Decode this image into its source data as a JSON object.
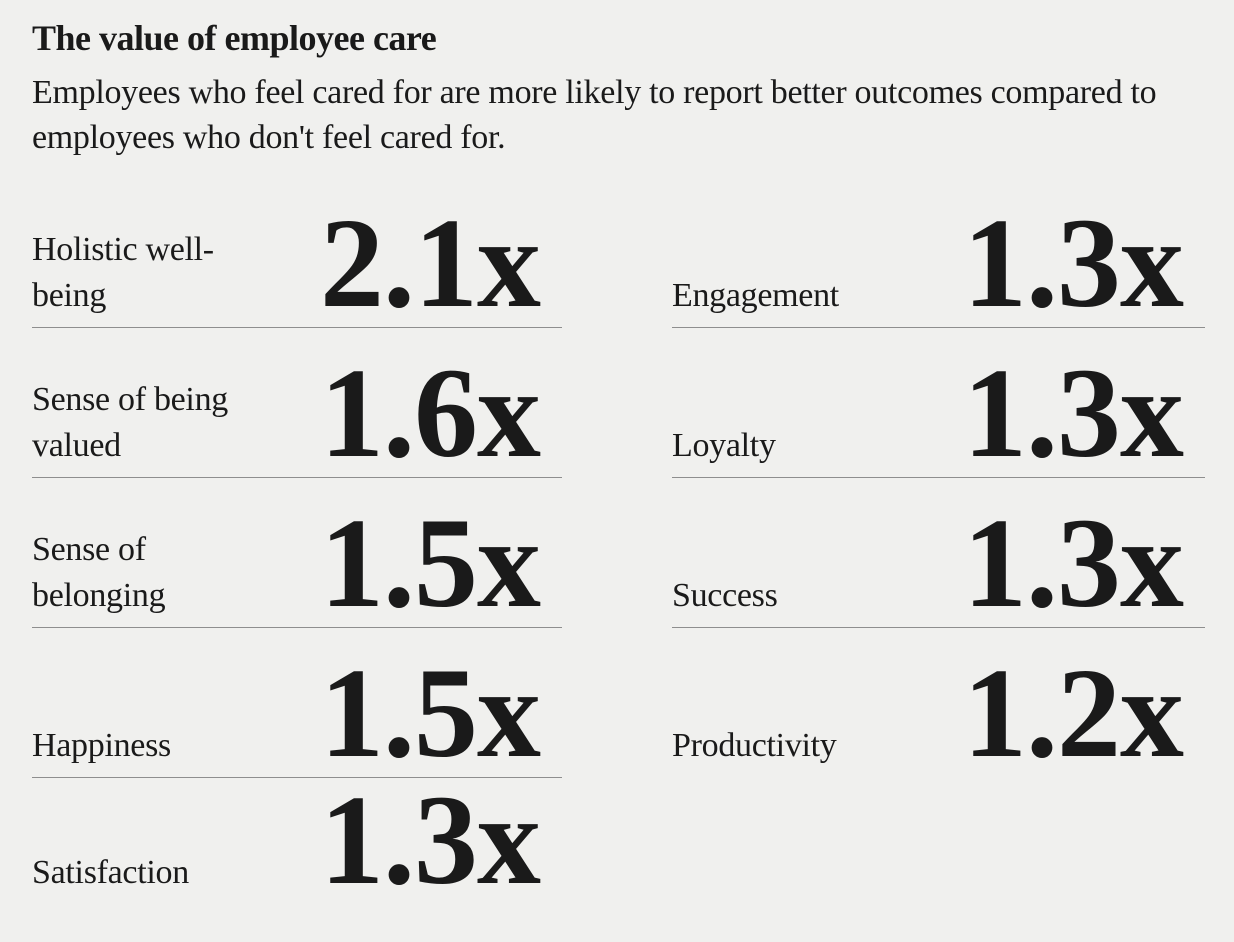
{
  "colors": {
    "background": "#f0f0ee",
    "text": "#1a1a1a",
    "divider": "#8e8e8e"
  },
  "header": {
    "title": "The value of employee care",
    "subtitle": "Employees who feel cared for are more likely to report better outcomes compared to employees who don't feel cared for."
  },
  "metrics": {
    "left": [
      {
        "label": "Holistic well-being",
        "value": "2.1x"
      },
      {
        "label": "Sense of being valued",
        "value": "1.6x"
      },
      {
        "label": "Sense of belonging",
        "value": "1.5x"
      },
      {
        "label": "Happiness",
        "value": "1.5x"
      },
      {
        "label": "Satisfaction",
        "value": "1.3x"
      }
    ],
    "right": [
      {
        "label": "Engagement",
        "value": "1.3x"
      },
      {
        "label": "Loyalty",
        "value": "1.3x"
      },
      {
        "label": "Success",
        "value": "1.3x"
      },
      {
        "label": "Productivity",
        "value": "1.2x"
      }
    ]
  },
  "chart_data": {
    "type": "table",
    "title": "The value of employee care",
    "subtitle": "Employees who feel cared for are more likely to report better outcomes compared to employees who don't feel cared for.",
    "layout": "two-column stat list",
    "value_format": "multiplier (x)",
    "categories": [
      "Holistic well-being",
      "Sense of being valued",
      "Sense of belonging",
      "Happiness",
      "Satisfaction",
      "Engagement",
      "Loyalty",
      "Success",
      "Productivity"
    ],
    "values": [
      2.1,
      1.6,
      1.5,
      1.5,
      1.3,
      1.3,
      1.3,
      1.3,
      1.2
    ]
  }
}
